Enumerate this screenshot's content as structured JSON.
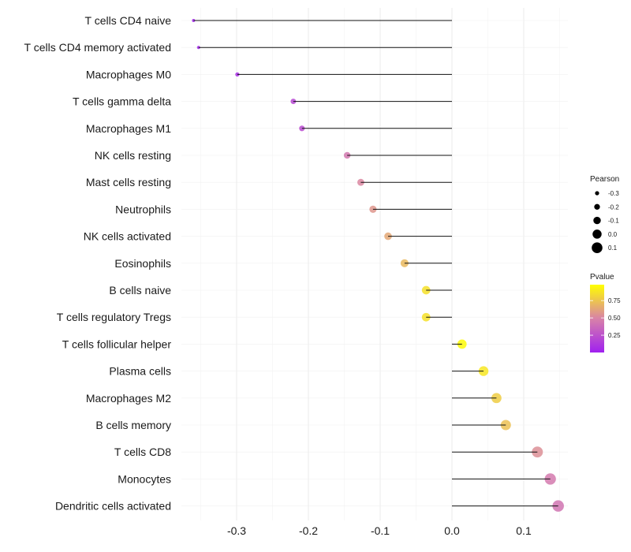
{
  "chart_data": {
    "type": "lollipop",
    "title": "",
    "xlabel": "",
    "ylabel": "",
    "xlim": [
      -0.37,
      0.16
    ],
    "xticks": [
      -0.3,
      -0.2,
      -0.1,
      0.0,
      0.1
    ],
    "xtick_labels": [
      "-0.3",
      "-0.2",
      "-0.1",
      "0.0",
      "0.1"
    ],
    "categories": [
      "T cells CD4 naive",
      "T cells CD4 memory activated",
      "Macrophages M0",
      "T cells gamma delta",
      "Macrophages M1",
      "NK cells resting",
      "Mast cells resting",
      "Neutrophils",
      "NK cells activated",
      "Eosinophils",
      "B cells naive",
      "T cells regulatory  Tregs",
      "T cells follicular helper",
      "Plasma cells",
      "Macrophages M2",
      "B cells memory",
      "T cells CD8",
      "Monocytes",
      "Dendritic cells activated"
    ],
    "pearson": [
      -0.36,
      -0.353,
      -0.299,
      -0.221,
      -0.209,
      -0.146,
      -0.127,
      -0.11,
      -0.089,
      -0.066,
      -0.036,
      -0.036,
      0.014,
      0.044,
      0.062,
      0.075,
      0.119,
      0.137,
      0.148
    ],
    "pvalue": [
      0.02,
      0.03,
      0.07,
      0.2,
      0.22,
      0.45,
      0.52,
      0.58,
      0.65,
      0.72,
      0.88,
      0.88,
      0.98,
      0.9,
      0.8,
      0.75,
      0.55,
      0.46,
      0.43
    ],
    "legend_size": {
      "title": "Pearson",
      "labels": [
        "-0.3",
        "-0.2",
        "-0.1",
        "0.0",
        "0.1"
      ],
      "values": [
        -0.3,
        -0.2,
        -0.1,
        0.0,
        0.1
      ]
    },
    "legend_color": {
      "title": "Pvalue",
      "labels": [
        "0.25",
        "0.50",
        "0.75"
      ],
      "values": [
        0.25,
        0.5,
        0.75
      ],
      "low": "#a020f0",
      "mid": "#d882a8",
      "high": "#ffff00"
    },
    "legend_placement": "right",
    "grid": true
  }
}
